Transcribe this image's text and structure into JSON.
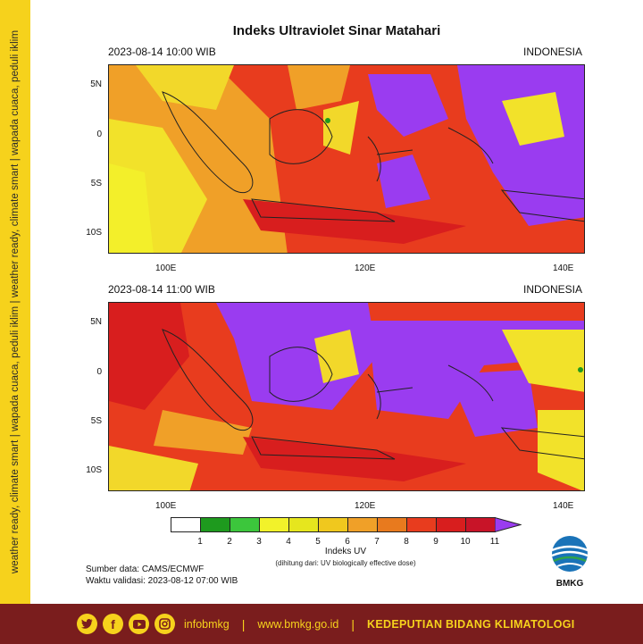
{
  "sidebar": {
    "text": "weather ready, climate smart  |  wapada cuaca, peduli iklim  |  weather ready, climate smart  |  wapada cuaca, peduli iklim"
  },
  "title": "Indeks Ultraviolet Sinar Matahari",
  "panels": [
    {
      "datetime": "2023-08-14  10:00 WIB",
      "region": "INDONESIA"
    },
    {
      "datetime": "2023-08-14  11:00 WIB",
      "region": "INDONESIA"
    }
  ],
  "axes": {
    "lat_ticks": [
      "5N",
      "0",
      "5S",
      "10S"
    ],
    "lon_ticks": [
      "100E",
      "120E",
      "140E"
    ]
  },
  "colorbar": {
    "title": "Indeks UV",
    "subtitle": "(dihitung dari: UV biologically effective dose)",
    "labels": [
      "1",
      "2",
      "3",
      "4",
      "5",
      "6",
      "7",
      "8",
      "9",
      "10",
      "11"
    ],
    "colors": [
      "#ffffff",
      "#1e9a1e",
      "#3cc63c",
      "#f2f22a",
      "#e6e61e",
      "#f0c81e",
      "#f0a028",
      "#e87a1e",
      "#e83c1e",
      "#d81e1e",
      "#c81428",
      "#9a3cf0"
    ]
  },
  "source": {
    "line1": "Sumber data: CAMS/ECMWF",
    "line2": "Waktu validasi: 2023-08-12 07:00 WIB"
  },
  "logo": {
    "text": "BMKG"
  },
  "footer": {
    "social_icons": [
      "twitter-icon",
      "facebook-icon",
      "youtube-icon",
      "instagram-icon"
    ],
    "handle": "infobmkg",
    "website": "www.bmkg.go.id",
    "department": "KEDEPUTIAN BIDANG KLIMATOLOGI",
    "bg_color": "#7a1d1d",
    "accent": "#f6d21c"
  }
}
